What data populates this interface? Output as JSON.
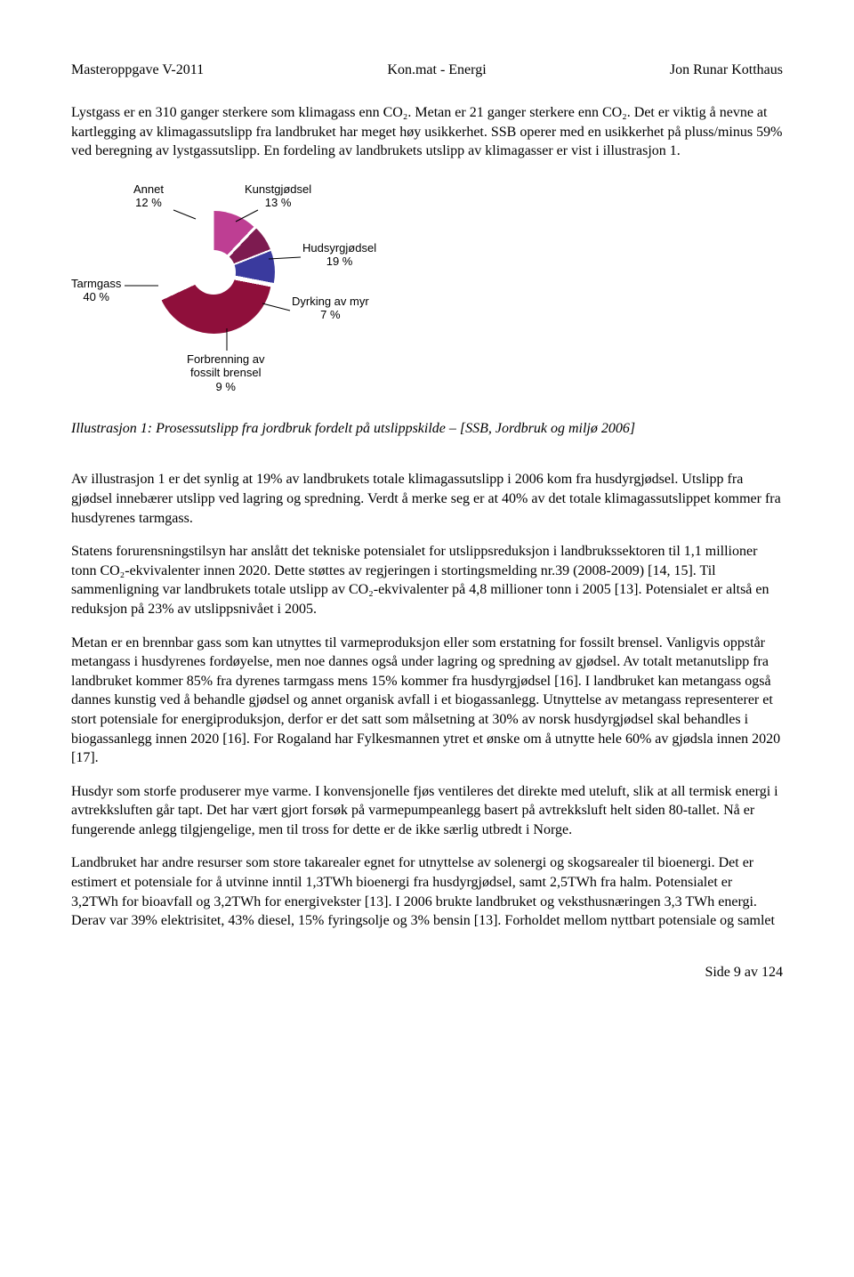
{
  "header": {
    "left": "Masteroppgave V-2011",
    "center": "Kon.mat - Energi",
    "right": "Jon Runar Kotthaus"
  },
  "para1": "Lystgass er en 310 ganger sterkere som klimagass enn CO₂. Metan er 21 ganger sterkere enn CO₂. Det er viktig å nevne at kartlegging av klimagassutslipp fra landbruket har meget høy usikkerhet. SSB operer med en usikkerhet på pluss/minus 59% ved beregning av lystgassutslipp. En fordeling av landbrukets utslipp av klimagasser er vist i illustrasjon 1.",
  "chart": {
    "type": "pie",
    "background_color": "#ffffff",
    "label_fontsize": 13,
    "label_font": "Arial",
    "slices": [
      {
        "name": "Annet",
        "value": 12,
        "color": "#d8383b"
      },
      {
        "name": "Kunstgjødsel",
        "value": 13,
        "color": "#9a9ae3"
      },
      {
        "name": "Hudsyrgjødsel",
        "value": 19,
        "color": "#be3e93"
      },
      {
        "name": "Dyrking av myr",
        "value": 7,
        "color": "#7d1b50"
      },
      {
        "name": "Forbrenning av fossilt brensel",
        "value": 9,
        "color": "#3a3a9e"
      },
      {
        "name": "Tarmgass",
        "value": 40,
        "color": "#8f0f3b"
      }
    ],
    "labels": {
      "annet": {
        "line1": "Annet",
        "line2": "12 %"
      },
      "kunst": {
        "line1": "Kunstgjødsel",
        "line2": "13 %"
      },
      "hudsyr": {
        "line1": "Hudsyrgjødsel",
        "line2": "19 %"
      },
      "dyrking": {
        "line1": "Dyrking av myr",
        "line2": "7 %"
      },
      "forbrenn": {
        "line1": "Forbrenning av",
        "line2": "fossilt brensel",
        "line3": "9 %"
      },
      "tarmgass": {
        "line1": "Tarmgass",
        "line2": "40 %"
      }
    }
  },
  "caption": "Illustrasjon 1: Prosessutslipp fra jordbruk fordelt på utslippskilde – [SSB, Jordbruk og miljø 2006]",
  "para2": "Av illustrasjon 1 er det synlig at 19% av landbrukets totale klimagassutslipp i 2006 kom fra husdyrgjødsel. Utslipp fra gjødsel innebærer utslipp ved lagring og spredning. Verdt å merke seg er at 40% av det totale klimagassutslippet kommer fra husdyrenes tarmgass.",
  "para3": "Statens forurensningstilsyn har anslått det tekniske potensialet for utslippsreduksjon i landbrukssektoren til 1,1 millioner tonn CO₂-ekvivalenter innen 2020. Dette støttes av regjeringen i stortingsmelding nr.39 (2008-2009) [14, 15]. Til sammenligning var landbrukets totale utslipp av CO₂-ekvivalenter på 4,8 millioner tonn i 2005 [13]. Potensialet er altså en reduksjon på 23% av utslippsnivået i 2005.",
  "para4": "Metan er en brennbar gass som kan utnyttes til varmeproduksjon eller som erstatning for fossilt brensel. Vanligvis oppstår metangass i husdyrenes fordøyelse, men noe dannes også under lagring og spredning av gjødsel. Av totalt metanutslipp fra landbruket kommer 85% fra dyrenes tarmgass mens 15% kommer fra husdyrgjødsel [16]. I landbruket kan metangass også dannes kunstig ved å behandle gjødsel og annet organisk avfall i et biogassanlegg. Utnyttelse av metangass representerer et stort potensiale for energiproduksjon, derfor er det satt som målsetning at 30% av norsk husdyrgjødsel skal behandles i biogassanlegg innen 2020 [16]. For Rogaland har Fylkesmannen ytret et ønske om å utnytte hele 60% av gjødsla innen 2020 [17].",
  "para5": "Husdyr som storfe produserer mye varme. I konvensjonelle fjøs ventileres det direkte med uteluft, slik at all termisk energi i avtrekksluften går tapt. Det har vært gjort forsøk på varmepumpeanlegg basert på avtrekksluft helt siden 80-tallet. Nå er fungerende anlegg tilgjengelige, men til tross for dette er de ikke særlig utbredt i Norge.",
  "para6": "Landbruket har andre resurser som store takarealer egnet for utnyttelse av solenergi og skogsarealer til bioenergi. Det er estimert et potensiale for å utvinne inntil 1,3TWh bioenergi fra husdyrgjødsel, samt 2,5TWh fra halm. Potensialet er 3,2TWh for bioavfall og 3,2TWh for energivekster [13]. I 2006 brukte landbruket og veksthusnæringen 3,3 TWh energi. Derav var 39% elektrisitet, 43% diesel, 15% fyringsolje og 3% bensin [13]. Forholdet mellom nyttbart potensiale og samlet",
  "footer": "Side 9 av 124"
}
